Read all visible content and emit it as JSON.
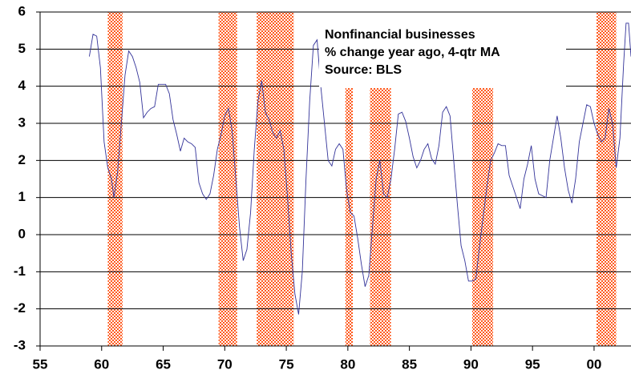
{
  "chart_data": {
    "type": "line",
    "annotation": [
      "Nonfinancial businesses",
      "% change year ago, 4-qtr MA",
      "Source: BLS"
    ],
    "x": [
      59.0,
      59.3,
      59.6,
      59.9,
      60.2,
      60.5,
      60.8,
      61.0,
      61.3,
      61.6,
      61.9,
      62.2,
      62.5,
      62.8,
      63.1,
      63.4,
      63.7,
      64.0,
      64.3,
      64.6,
      64.9,
      65.2,
      65.5,
      65.8,
      66.1,
      66.4,
      66.7,
      67.0,
      67.3,
      67.6,
      67.9,
      68.2,
      68.5,
      68.8,
      69.1,
      69.4,
      69.7,
      70.0,
      70.3,
      70.6,
      70.9,
      71.2,
      71.5,
      71.8,
      72.1,
      72.4,
      72.7,
      73.0,
      73.3,
      73.6,
      73.9,
      74.2,
      74.5,
      74.8,
      75.1,
      75.4,
      75.7,
      76.0,
      76.3,
      76.6,
      76.9,
      77.2,
      77.5,
      77.8,
      78.1,
      78.4,
      78.7,
      79.0,
      79.3,
      79.6,
      79.9,
      80.2,
      80.5,
      80.8,
      81.1,
      81.4,
      81.7,
      82.0,
      82.3,
      82.6,
      82.9,
      83.2,
      83.5,
      83.8,
      84.1,
      84.4,
      84.7,
      85.0,
      85.3,
      85.6,
      85.9,
      86.2,
      86.5,
      86.8,
      87.1,
      87.4,
      87.7,
      88.0,
      88.3,
      88.6,
      88.9,
      89.2,
      89.5,
      89.8,
      90.1,
      90.4,
      90.7,
      91.0,
      91.3,
      91.6,
      91.9,
      92.2,
      92.5,
      92.8,
      93.1,
      93.4,
      93.7,
      94.0,
      94.3,
      94.6,
      94.9,
      95.2,
      95.5,
      95.8,
      96.1,
      96.4,
      96.7,
      97.0,
      97.3,
      97.6,
      97.9,
      98.2,
      98.5,
      98.8,
      99.1,
      99.4,
      99.7,
      100.0,
      100.3,
      100.6,
      100.9,
      101.2,
      101.5,
      101.8,
      102.1,
      102.4,
      102.6,
      102.8,
      103.0
    ],
    "series": [
      {
        "color": "#333399",
        "values": [
          4.8,
          5.4,
          5.35,
          4.5,
          2.5,
          1.8,
          1.5,
          1.0,
          1.7,
          3.0,
          4.3,
          4.95,
          4.8,
          4.5,
          4.1,
          3.15,
          3.3,
          3.4,
          3.45,
          4.05,
          4.05,
          4.05,
          3.8,
          3.1,
          2.7,
          2.25,
          2.6,
          2.5,
          2.45,
          2.35,
          1.4,
          1.1,
          0.95,
          1.1,
          1.6,
          2.3,
          2.7,
          3.2,
          3.4,
          2.8,
          1.5,
          0.2,
          -0.7,
          -0.4,
          0.6,
          2.3,
          3.6,
          4.15,
          3.3,
          3.1,
          2.75,
          2.6,
          2.8,
          2.3,
          1.0,
          -0.5,
          -1.6,
          -2.15,
          -1.0,
          1.5,
          3.6,
          5.1,
          5.25,
          4.0,
          3.0,
          2.0,
          1.85,
          2.3,
          2.45,
          2.3,
          1.2,
          0.6,
          0.5,
          -0.1,
          -0.8,
          -1.4,
          -1.1,
          0.2,
          1.5,
          2.0,
          1.1,
          1.0,
          1.5,
          2.3,
          3.25,
          3.3,
          3.05,
          2.6,
          2.1,
          1.8,
          2.0,
          2.3,
          2.45,
          2.05,
          1.9,
          2.4,
          3.3,
          3.45,
          3.2,
          2.0,
          0.8,
          -0.3,
          -0.7,
          -1.25,
          -1.25,
          -1.2,
          -0.3,
          0.5,
          1.3,
          2.0,
          2.2,
          2.45,
          2.4,
          2.4,
          1.6,
          1.3,
          1.0,
          0.7,
          1.5,
          1.9,
          2.4,
          1.5,
          1.1,
          1.05,
          1.0,
          2.0,
          2.6,
          3.2,
          2.6,
          1.8,
          1.2,
          0.85,
          1.5,
          2.5,
          3.0,
          3.5,
          3.45,
          3.0,
          2.7,
          2.5,
          2.6,
          3.4,
          3.0,
          1.8,
          2.6,
          4.6,
          5.7,
          5.7,
          4.8
        ]
      }
    ],
    "shaded_regions": [
      {
        "start": 60.5,
        "end": 61.7,
        "top": 6
      },
      {
        "start": 69.5,
        "end": 71.0,
        "top": 6
      },
      {
        "start": 72.6,
        "end": 75.6,
        "top": 6
      },
      {
        "start": 79.8,
        "end": 80.4,
        "top": 3.95
      },
      {
        "start": 81.8,
        "end": 83.5,
        "top": 3.95
      },
      {
        "start": 90.1,
        "end": 91.8,
        "top": 3.95
      },
      {
        "start": 100.2,
        "end": 101.8,
        "top": 6
      }
    ],
    "shade_color": "#ff5a1e",
    "xlim": [
      55,
      103
    ],
    "xticks": [
      55,
      60,
      65,
      70,
      75,
      80,
      85,
      90,
      95,
      {
        "value": 100,
        "label": "00"
      }
    ],
    "ylim": [
      -3,
      6
    ],
    "yticks": [
      -3,
      -2,
      -1,
      0,
      1,
      2,
      3,
      4,
      5,
      6
    ],
    "grid": true
  }
}
